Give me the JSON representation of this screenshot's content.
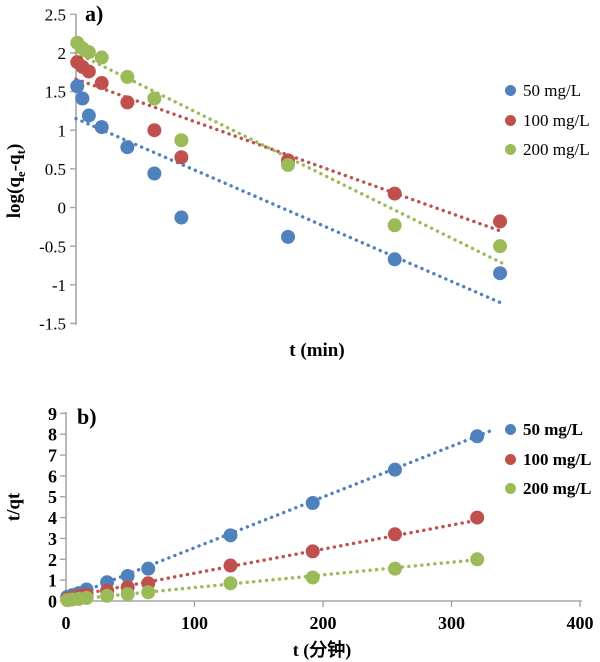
{
  "panels": {
    "a": {
      "label": "a)",
      "x_title": "t (min)",
      "y_title": {
        "p1": "log(q",
        "s1": "e",
        "p2": "-q",
        "s2": "t",
        "p3": ")"
      },
      "y_tick_labels": [
        "2.5",
        "2",
        "1.5",
        "1",
        "0.5",
        "0",
        "-0.5",
        "-1",
        "-1.5"
      ],
      "x_tick_labels": []
    },
    "b": {
      "label": "b)",
      "x_title": "t (分钟)",
      "y_title": "t/qt",
      "y_tick_labels": [
        "9",
        "8",
        "7",
        "6",
        "5",
        "4",
        "3",
        "2",
        "1",
        "0"
      ],
      "x_tick_labels": [
        "0",
        "100",
        "200",
        "300",
        "400"
      ]
    }
  },
  "legend": {
    "items": [
      {
        "label": "50 mg/L",
        "color": "#4F81BD"
      },
      {
        "label": "100 mg/L",
        "color": "#C0504D"
      },
      {
        "label": "200 mg/L",
        "color": "#9BBB59"
      }
    ]
  },
  "colors": {
    "axis": "#A6A6A6",
    "text": "#000000",
    "background": "#FFFFFF",
    "series_blue": "#4F81BD",
    "series_red": "#C0504D",
    "series_green": "#9BBB59"
  },
  "chart_data": [
    {
      "panel": "a",
      "type": "scatter",
      "title": "",
      "xlabel": "t (min)",
      "ylabel": "log(qe-qt)",
      "xlim": [
        0,
        400
      ],
      "ylim": [
        -1.5,
        2.5
      ],
      "x_tick_values": [],
      "y_tick_values": [
        2.5,
        2,
        1.5,
        1,
        0.5,
        0,
        -0.5,
        -1,
        -1.5
      ],
      "grid": false,
      "legend_position": "right",
      "marker": "circle",
      "series": [
        {
          "name": "50 mg/L",
          "color": "#4F81BD",
          "x": [
            1,
            5,
            10,
            20,
            40,
            61,
            82,
            165,
            248,
            330
          ],
          "y": [
            1.57,
            1.41,
            1.19,
            1.04,
            0.78,
            0.44,
            -0.13,
            -0.38,
            -0.67,
            -0.85
          ],
          "trendline": {
            "style": "dotted",
            "x": [
              0,
              333
            ],
            "y": [
              1.15,
              -1.25
            ]
          }
        },
        {
          "name": "100 mg/L",
          "color": "#C0504D",
          "x": [
            1,
            5,
            10,
            20,
            40,
            61,
            82,
            165,
            248,
            330
          ],
          "y": [
            1.88,
            1.82,
            1.76,
            1.61,
            1.36,
            1.0,
            0.65,
            0.61,
            0.18,
            -0.18
          ],
          "trendline": {
            "style": "dotted",
            "x": [
              0,
              333
            ],
            "y": [
              1.66,
              -0.32
            ]
          }
        },
        {
          "name": "200 mg/L",
          "color": "#9BBB59",
          "x": [
            1,
            5,
            10,
            20,
            40,
            61,
            82,
            165,
            248,
            330
          ],
          "y": [
            2.13,
            2.06,
            2.01,
            1.94,
            1.69,
            1.41,
            0.87,
            0.55,
            -0.23,
            -0.5
          ],
          "trendline": {
            "style": "dotted",
            "x": [
              0,
              333
            ],
            "y": [
              2.0,
              -0.73
            ]
          }
        }
      ]
    },
    {
      "panel": "b",
      "type": "scatter",
      "title": "",
      "xlabel": "t (分钟)",
      "ylabel": "t/qt",
      "xlim": [
        0,
        400
      ],
      "ylim": [
        0,
        9
      ],
      "x_tick_values": [
        0,
        100,
        200,
        300,
        400
      ],
      "y_tick_values": [
        0,
        1,
        2,
        3,
        4,
        5,
        6,
        7,
        8,
        9
      ],
      "grid": false,
      "legend_position": "right",
      "marker": "circle",
      "series": [
        {
          "name": "50 mg/L",
          "color": "#4F81BD",
          "x": [
            1,
            5,
            10,
            16,
            32,
            48,
            64,
            128,
            192,
            256,
            320
          ],
          "y": [
            0.2,
            0.28,
            0.38,
            0.55,
            0.9,
            1.2,
            1.55,
            3.15,
            4.7,
            6.3,
            7.9
          ],
          "trendline": {
            "style": "dotted",
            "x": [
              0,
              332
            ],
            "y": [
              0.12,
              8.2
            ]
          }
        },
        {
          "name": "100 mg/L",
          "color": "#C0504D",
          "x": [
            1,
            5,
            10,
            16,
            32,
            48,
            64,
            128,
            192,
            256,
            320
          ],
          "y": [
            0.1,
            0.16,
            0.24,
            0.3,
            0.5,
            0.66,
            0.85,
            1.7,
            2.38,
            3.2,
            4.0
          ],
          "trendline": {
            "style": "dotted",
            "x": [
              0,
              318
            ],
            "y": [
              0.18,
              3.85
            ]
          }
        },
        {
          "name": "200 mg/L",
          "color": "#9BBB59",
          "x": [
            1,
            5,
            10,
            16,
            32,
            48,
            64,
            128,
            192,
            256,
            320
          ],
          "y": [
            0.04,
            0.07,
            0.1,
            0.15,
            0.25,
            0.33,
            0.42,
            0.85,
            1.13,
            1.55,
            2.0
          ],
          "trendline": {
            "style": "dotted",
            "x": [
              0,
              315
            ],
            "y": [
              0.04,
              1.95
            ]
          }
        }
      ]
    }
  ]
}
